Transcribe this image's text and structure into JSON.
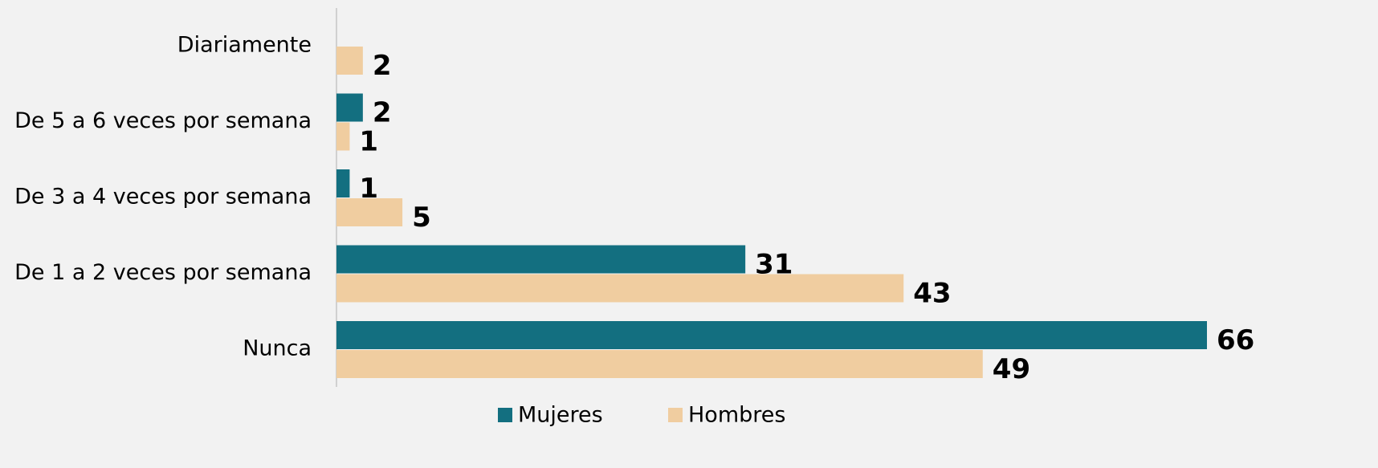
{
  "chart_data": {
    "type": "bar",
    "orientation": "horizontal",
    "categories": [
      "Diariamente",
      "De 5 a 6 veces por semana",
      "De 3 a 4 veces por semana",
      "De 1 a 2 veces por semana",
      "Nunca"
    ],
    "series": [
      {
        "name": "Mujeres",
        "color": "#136f80",
        "values": [
          null,
          2,
          1,
          31,
          66
        ]
      },
      {
        "name": "Hombres",
        "color": "#f0cda0",
        "values": [
          2,
          1,
          5,
          43,
          49
        ]
      }
    ],
    "xlim": [
      0,
      66
    ]
  }
}
